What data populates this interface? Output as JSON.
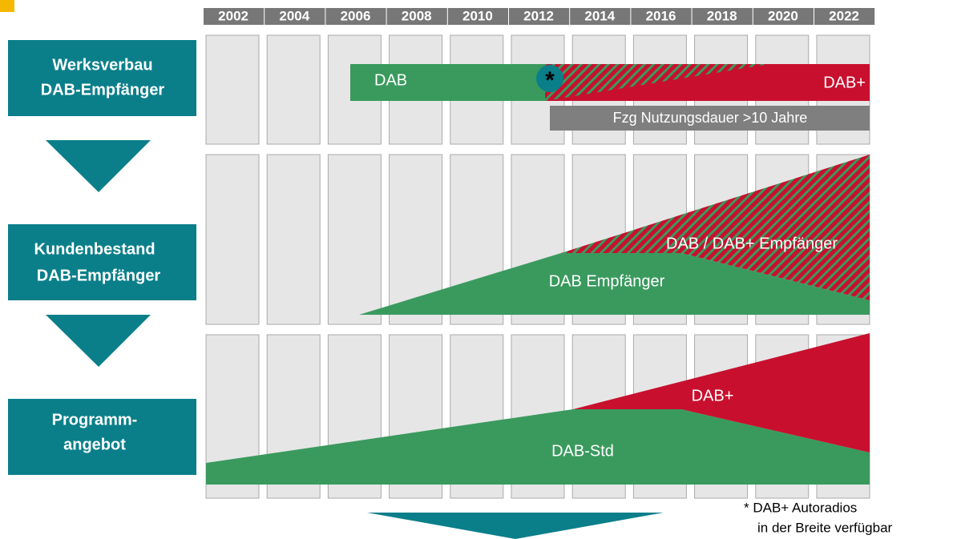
{
  "years": [
    "2002",
    "2004",
    "2006",
    "2008",
    "2010",
    "2012",
    "2014",
    "2016",
    "2018",
    "2020",
    "2022"
  ],
  "rows": [
    {
      "lines": [
        "Werksverbau",
        "DAB-Empfänger"
      ]
    },
    {
      "lines": [
        "Kundenbestand",
        "DAB-Empfänger"
      ]
    },
    {
      "lines": [
        "Programm-",
        "angebot"
      ]
    }
  ],
  "row1": {
    "dab": "DAB",
    "star": "*",
    "dab_plus": "DAB+",
    "usage": "Fzg Nutzungsdauer >10 Jahre"
  },
  "row2": {
    "mixed": "DAB / DAB+ Empfänger",
    "dab": "DAB Empfänger"
  },
  "row3": {
    "dab_plus": "DAB+",
    "dab_std": "DAB-Std"
  },
  "footnote": [
    "* DAB+ Autoradios",
    "in der Breite verfügbar"
  ]
}
